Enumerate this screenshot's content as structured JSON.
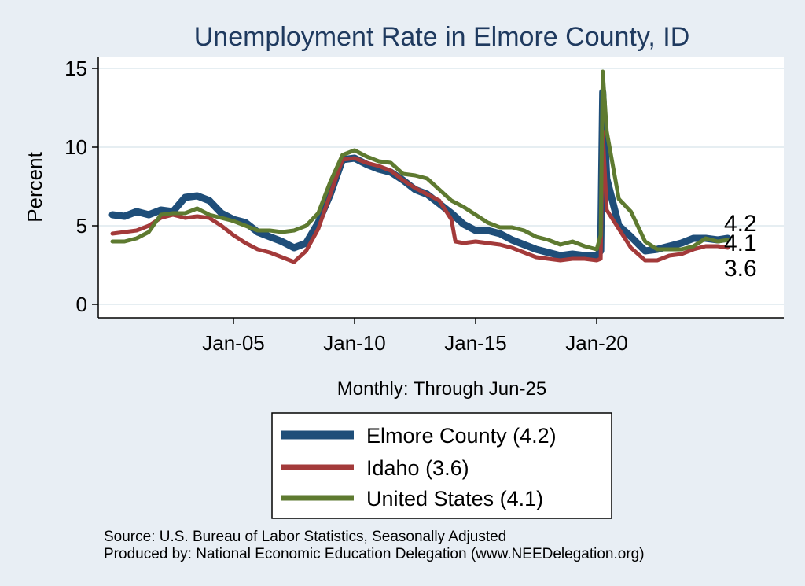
{
  "chart_data": {
    "type": "line",
    "title": "Unemployment Rate in Elmore  County, ID",
    "ylabel": "Percent",
    "xlabel": "Monthly: Through Jun-25",
    "ylim": [
      0,
      15
    ],
    "yticks": [
      "0",
      "5",
      "10",
      "15"
    ],
    "xticks": [
      "Jan-05",
      "Jan-10",
      "Jan-15",
      "Jan-20"
    ],
    "grid": true,
    "legend_position": "bottom",
    "end_labels": [
      "4.2",
      "4.1",
      "3.6"
    ],
    "series": [
      {
        "name": "Elmore  County (4.2)",
        "color": "#1f4e79",
        "points": [
          [
            "2000-01",
            5.7
          ],
          [
            "2000-07",
            5.6
          ],
          [
            "2001-01",
            5.9
          ],
          [
            "2001-07",
            5.7
          ],
          [
            "2002-01",
            6.0
          ],
          [
            "2002-07",
            5.9
          ],
          [
            "2003-01",
            6.8
          ],
          [
            "2003-07",
            6.9
          ],
          [
            "2004-01",
            6.6
          ],
          [
            "2004-07",
            5.8
          ],
          [
            "2005-01",
            5.4
          ],
          [
            "2005-07",
            5.2
          ],
          [
            "2006-01",
            4.6
          ],
          [
            "2006-07",
            4.3
          ],
          [
            "2007-01",
            4.0
          ],
          [
            "2007-07",
            3.6
          ],
          [
            "2008-01",
            3.9
          ],
          [
            "2008-07",
            5.2
          ],
          [
            "2009-01",
            7.0
          ],
          [
            "2009-07",
            9.2
          ],
          [
            "2010-01",
            9.3
          ],
          [
            "2010-07",
            8.9
          ],
          [
            "2011-01",
            8.6
          ],
          [
            "2011-07",
            8.4
          ],
          [
            "2012-01",
            7.9
          ],
          [
            "2012-07",
            7.3
          ],
          [
            "2013-01",
            7.0
          ],
          [
            "2013-07",
            6.4
          ],
          [
            "2014-01",
            5.8
          ],
          [
            "2014-07",
            5.1
          ],
          [
            "2015-01",
            4.7
          ],
          [
            "2015-07",
            4.7
          ],
          [
            "2016-01",
            4.5
          ],
          [
            "2016-07",
            4.1
          ],
          [
            "2017-01",
            3.8
          ],
          [
            "2017-07",
            3.5
          ],
          [
            "2018-01",
            3.3
          ],
          [
            "2018-07",
            3.1
          ],
          [
            "2019-01",
            3.2
          ],
          [
            "2019-07",
            3.1
          ],
          [
            "2020-01",
            3.1
          ],
          [
            "2020-03",
            3.4
          ],
          [
            "2020-04",
            13.5
          ],
          [
            "2020-06",
            8.0
          ],
          [
            "2020-12",
            5.0
          ],
          [
            "2021-06",
            4.3
          ],
          [
            "2022-01",
            3.4
          ],
          [
            "2022-07",
            3.5
          ],
          [
            "2023-01",
            3.7
          ],
          [
            "2023-07",
            3.9
          ],
          [
            "2024-01",
            4.2
          ],
          [
            "2024-07",
            4.2
          ],
          [
            "2025-01",
            4.1
          ],
          [
            "2025-06",
            4.2
          ]
        ]
      },
      {
        "name": "Idaho (3.6)",
        "color": "#a33a3a",
        "points": [
          [
            "2000-01",
            4.5
          ],
          [
            "2000-07",
            4.6
          ],
          [
            "2001-01",
            4.7
          ],
          [
            "2001-07",
            5.0
          ],
          [
            "2002-01",
            5.5
          ],
          [
            "2002-07",
            5.7
          ],
          [
            "2003-01",
            5.5
          ],
          [
            "2003-07",
            5.6
          ],
          [
            "2004-01",
            5.5
          ],
          [
            "2004-07",
            5.0
          ],
          [
            "2005-01",
            4.4
          ],
          [
            "2005-07",
            3.9
          ],
          [
            "2006-01",
            3.5
          ],
          [
            "2006-07",
            3.3
          ],
          [
            "2007-01",
            3.0
          ],
          [
            "2007-07",
            2.7
          ],
          [
            "2008-01",
            3.4
          ],
          [
            "2008-07",
            4.8
          ],
          [
            "2009-01",
            7.0
          ],
          [
            "2009-07",
            9.2
          ],
          [
            "2010-01",
            9.3
          ],
          [
            "2010-07",
            9.0
          ],
          [
            "2011-01",
            8.8
          ],
          [
            "2011-07",
            8.5
          ],
          [
            "2012-01",
            7.9
          ],
          [
            "2012-07",
            7.4
          ],
          [
            "2013-01",
            7.0
          ],
          [
            "2013-07",
            6.6
          ],
          [
            "2014-01",
            5.4
          ],
          [
            "2014-03",
            4.0
          ],
          [
            "2014-07",
            3.9
          ],
          [
            "2015-01",
            4.0
          ],
          [
            "2015-07",
            3.9
          ],
          [
            "2016-01",
            3.8
          ],
          [
            "2016-07",
            3.6
          ],
          [
            "2017-01",
            3.3
          ],
          [
            "2017-07",
            3.0
          ],
          [
            "2018-01",
            2.9
          ],
          [
            "2018-07",
            2.8
          ],
          [
            "2019-01",
            2.9
          ],
          [
            "2019-07",
            2.9
          ],
          [
            "2020-01",
            2.8
          ],
          [
            "2020-03",
            2.9
          ],
          [
            "2020-04",
            11.0
          ],
          [
            "2020-06",
            6.0
          ],
          [
            "2020-12",
            4.8
          ],
          [
            "2021-06",
            3.6
          ],
          [
            "2022-01",
            2.8
          ],
          [
            "2022-07",
            2.8
          ],
          [
            "2023-01",
            3.1
          ],
          [
            "2023-07",
            3.2
          ],
          [
            "2024-01",
            3.5
          ],
          [
            "2024-07",
            3.7
          ],
          [
            "2025-01",
            3.7
          ],
          [
            "2025-06",
            3.6
          ]
        ]
      },
      {
        "name": "United States (4.1)",
        "color": "#5e7a30",
        "points": [
          [
            "2000-01",
            4.0
          ],
          [
            "2000-07",
            4.0
          ],
          [
            "2001-01",
            4.2
          ],
          [
            "2001-07",
            4.6
          ],
          [
            "2002-01",
            5.7
          ],
          [
            "2002-07",
            5.8
          ],
          [
            "2003-01",
            5.8
          ],
          [
            "2003-07",
            6.1
          ],
          [
            "2004-01",
            5.7
          ],
          [
            "2004-07",
            5.5
          ],
          [
            "2005-01",
            5.3
          ],
          [
            "2005-07",
            5.0
          ],
          [
            "2006-01",
            4.7
          ],
          [
            "2006-07",
            4.7
          ],
          [
            "2007-01",
            4.6
          ],
          [
            "2007-07",
            4.7
          ],
          [
            "2008-01",
            5.0
          ],
          [
            "2008-07",
            5.8
          ],
          [
            "2009-01",
            7.8
          ],
          [
            "2009-07",
            9.5
          ],
          [
            "2010-01",
            9.8
          ],
          [
            "2010-07",
            9.4
          ],
          [
            "2011-01",
            9.1
          ],
          [
            "2011-07",
            9.0
          ],
          [
            "2012-01",
            8.3
          ],
          [
            "2012-07",
            8.2
          ],
          [
            "2013-01",
            8.0
          ],
          [
            "2013-07",
            7.3
          ],
          [
            "2014-01",
            6.6
          ],
          [
            "2014-07",
            6.2
          ],
          [
            "2015-01",
            5.7
          ],
          [
            "2015-07",
            5.2
          ],
          [
            "2016-01",
            4.9
          ],
          [
            "2016-07",
            4.9
          ],
          [
            "2017-01",
            4.7
          ],
          [
            "2017-07",
            4.3
          ],
          [
            "2018-01",
            4.1
          ],
          [
            "2018-07",
            3.8
          ],
          [
            "2019-01",
            4.0
          ],
          [
            "2019-07",
            3.7
          ],
          [
            "2020-01",
            3.5
          ],
          [
            "2020-03",
            4.4
          ],
          [
            "2020-04",
            14.8
          ],
          [
            "2020-06",
            11.0
          ],
          [
            "2020-12",
            6.7
          ],
          [
            "2021-06",
            5.9
          ],
          [
            "2022-01",
            4.0
          ],
          [
            "2022-07",
            3.5
          ],
          [
            "2023-01",
            3.5
          ],
          [
            "2023-07",
            3.5
          ],
          [
            "2024-01",
            3.7
          ],
          [
            "2024-07",
            4.2
          ],
          [
            "2025-01",
            4.0
          ],
          [
            "2025-06",
            4.1
          ]
        ]
      }
    ]
  },
  "source": {
    "line1": "Source: U.S. Bureau of Labor Statistics, Seasonally Adjusted",
    "line2": "Produced by: National Economic Education Delegation (www.NEEDelegation.org)"
  }
}
